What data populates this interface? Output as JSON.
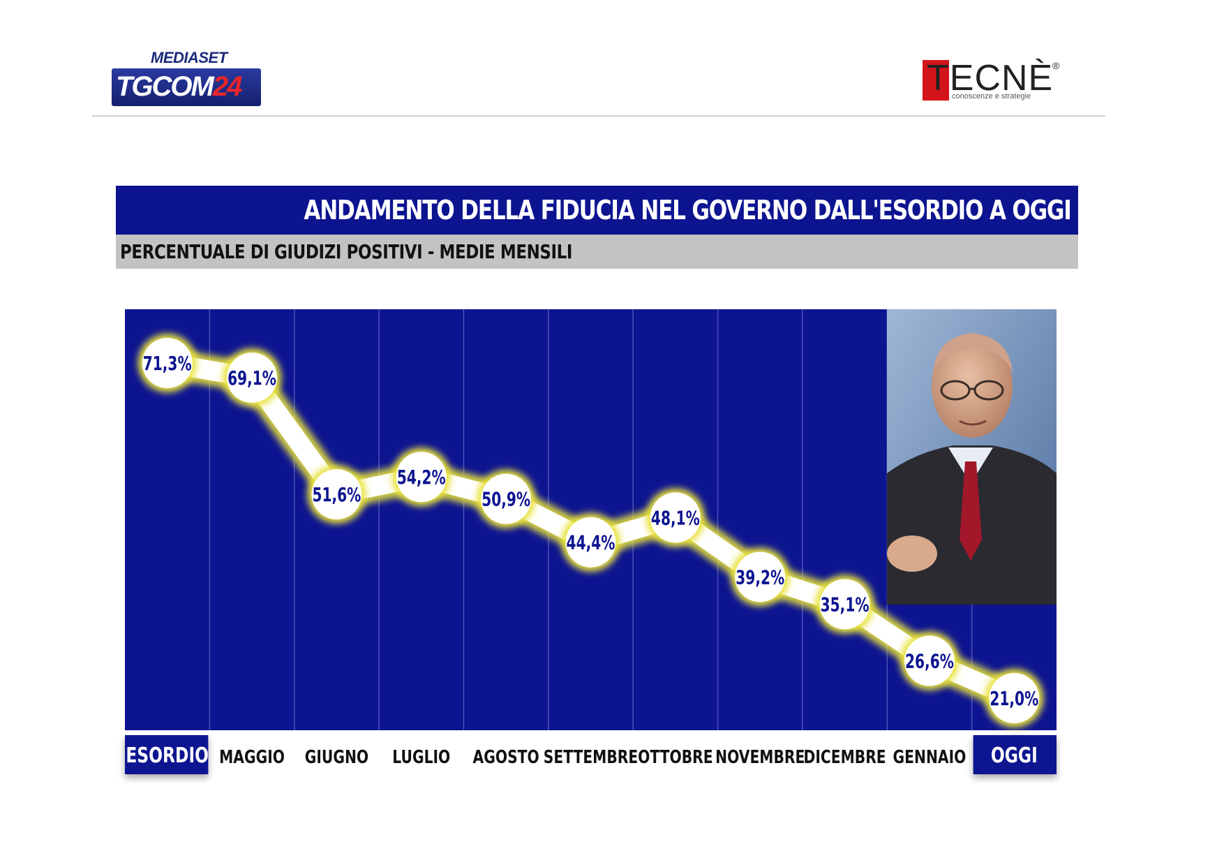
{
  "logos": {
    "mediaset": "MEDIASET",
    "tgcom_a": "TGCOM",
    "tgcom_b": "24",
    "tecne": "TECNÈ",
    "tecne_reg": "®",
    "tecne_sub": "conoscenze e strategie"
  },
  "title": "ANDAMENTO DELLA FIDUCIA NEL GOVERNO DALL'ESORDIO A OGGI",
  "subtitle": "PERCENTUALE DI GIUDIZI POSITIVI - MEDIE MENSILI",
  "colors": {
    "panel": "#0d1490",
    "line": "#ffffff",
    "glow": "#e8e23a",
    "label": "#0d1490",
    "highlight_box": "#0d1490"
  },
  "chart_data": {
    "type": "line",
    "categories": [
      "ESORDIO",
      "MAGGIO",
      "GIUGNO",
      "LUGLIO",
      "AGOSTO",
      "SETTEMBRE",
      "OTTOBRE",
      "NOVEMBRE",
      "DICEMBRE",
      "GENNAIO",
      "OGGI"
    ],
    "values": [
      71.3,
      69.1,
      51.6,
      54.2,
      50.9,
      44.4,
      48.1,
      39.2,
      35.1,
      26.6,
      21.0
    ],
    "labels": [
      "71,3%",
      "69,1%",
      "51,6%",
      "54,2%",
      "50,9%",
      "44,4%",
      "48,1%",
      "39,2%",
      "35,1%",
      "26,6%",
      "21,0%"
    ],
    "highlighted_categories": [
      "ESORDIO",
      "OGGI"
    ],
    "ylim": [
      21.0,
      71.3
    ],
    "grid": "vertical",
    "legend": "none"
  }
}
